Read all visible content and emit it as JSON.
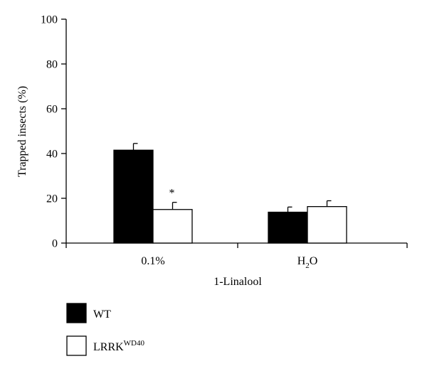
{
  "chart_data": {
    "type": "bar",
    "title": "",
    "xlabel": "1-Linalool",
    "ylabel": "Trapped insects (%)",
    "ylim": [
      0,
      100
    ],
    "yticks": [
      "0",
      "20",
      "40",
      "60",
      "80",
      "100"
    ],
    "categories": [
      {
        "label": "0.1%",
        "base": "0.1%",
        "sub": ""
      },
      {
        "label": "H2O",
        "base": "H",
        "sub": "2",
        "after": "O"
      }
    ],
    "series": [
      {
        "name": "WT",
        "sup": "",
        "color": "#000000",
        "values": [
          41.5,
          13.8
        ],
        "errors": [
          3.0,
          2.3
        ]
      },
      {
        "name": "LRRK",
        "sup": "WD40",
        "color": "#ffffff",
        "values": [
          15.0,
          16.3
        ],
        "errors": [
          3.2,
          2.6
        ]
      }
    ],
    "annotations": [
      {
        "text": "*",
        "category": 0,
        "series": 1
      }
    ],
    "grid": false,
    "legend_position": "bottom-left"
  }
}
